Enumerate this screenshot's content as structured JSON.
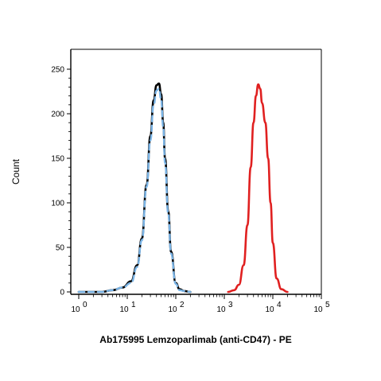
{
  "chart_data": {
    "type": "line",
    "title": "",
    "xlabel": "Ab175995 Lemzoparlimab (anti-CD47) - PE",
    "ylabel": "Count",
    "x_scale": "log",
    "xlim": [
      1,
      100000
    ],
    "ylim": [
      0,
      250
    ],
    "x_ticks": [
      {
        "value": 1,
        "base": "10",
        "exp": "0"
      },
      {
        "value": 10,
        "base": "10",
        "exp": "1"
      },
      {
        "value": 100,
        "base": "10",
        "exp": "2"
      },
      {
        "value": 1000,
        "base": "10",
        "exp": "3"
      },
      {
        "value": 10000,
        "base": "10",
        "exp": "4"
      },
      {
        "value": 100000,
        "base": "10",
        "exp": "5"
      }
    ],
    "y_ticks": [
      {
        "value": 0,
        "label": "0"
      },
      {
        "value": 50,
        "label": "50"
      },
      {
        "value": 100,
        "label": "100"
      },
      {
        "value": 150,
        "label": "150"
      },
      {
        "value": 200,
        "label": "200"
      },
      {
        "value": 250,
        "label": "250"
      }
    ],
    "grid": false,
    "legend": "none",
    "series": [
      {
        "color": "#000000",
        "dash": "solid",
        "x": [
          1,
          3,
          5,
          8,
          12,
          16,
          20,
          25,
          30,
          35,
          40,
          45,
          50,
          55,
          60,
          70,
          80,
          100,
          120,
          150,
          200
        ],
        "y": [
          0,
          0,
          2,
          5,
          12,
          30,
          60,
          120,
          175,
          215,
          232,
          234,
          222,
          190,
          150,
          90,
          45,
          10,
          3,
          1,
          0
        ]
      },
      {
        "color": "#7ab4e6",
        "dash": "dashed",
        "x": [
          1,
          3,
          5,
          8,
          12,
          16,
          20,
          25,
          30,
          35,
          40,
          45,
          50,
          55,
          60,
          70,
          80,
          100,
          120,
          150,
          200
        ],
        "y": [
          0,
          0,
          2,
          5,
          10,
          28,
          58,
          118,
          170,
          210,
          226,
          228,
          216,
          185,
          145,
          87,
          43,
          9,
          2,
          1,
          0
        ]
      },
      {
        "color": "#e02020",
        "dash": "solid",
        "x": [
          1200,
          1600,
          2000,
          2500,
          3000,
          3500,
          4000,
          4500,
          5000,
          5500,
          6000,
          7000,
          8000,
          9000,
          10000,
          12000,
          15000,
          20000
        ],
        "y": [
          0,
          2,
          8,
          30,
          75,
          140,
          190,
          220,
          233,
          228,
          212,
          190,
          150,
          100,
          55,
          15,
          3,
          0
        ]
      }
    ]
  }
}
